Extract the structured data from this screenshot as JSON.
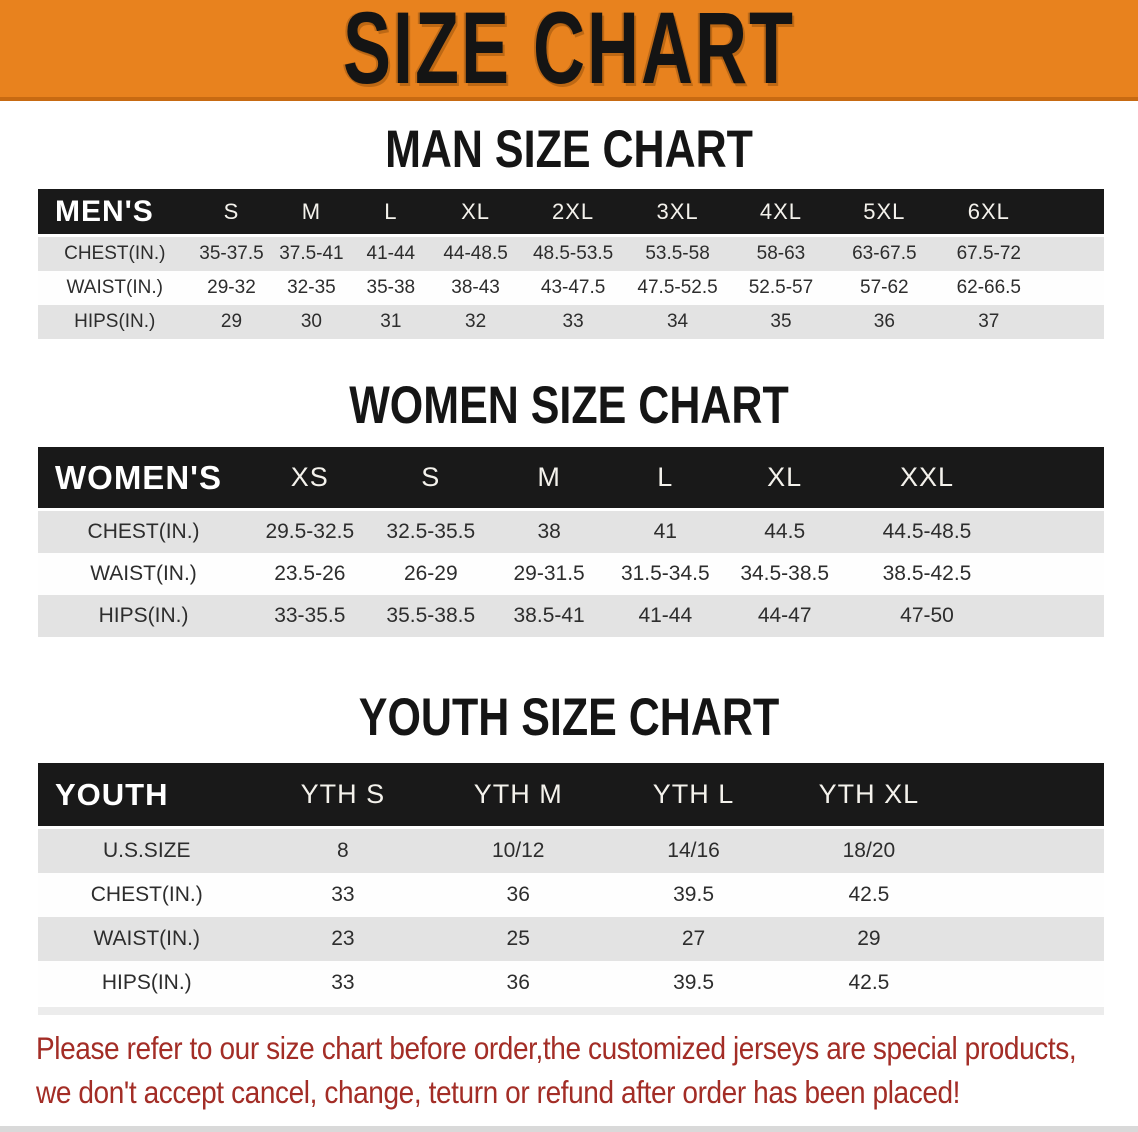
{
  "banner": {
    "title": "SIZE CHART"
  },
  "sections": {
    "man": {
      "heading": "MAN SIZE CHART",
      "table": {
        "header": [
          "MEN'S",
          "S",
          "M",
          "L",
          "XL",
          "2XL",
          "3XL",
          "4XL",
          "5XL",
          "6XL"
        ],
        "rows": [
          {
            "label": "CHEST(IN.)",
            "values": [
              "35-37.5",
              "37.5-41",
              "41-44",
              "44-48.5",
              "48.5-53.5",
              "53.5-58",
              "58-63",
              "63-67.5",
              "67.5-72"
            ]
          },
          {
            "label": "WAIST(IN.)",
            "values": [
              "29-32",
              "32-35",
              "35-38",
              "38-43",
              "43-47.5",
              "47.5-52.5",
              "52.5-57",
              "57-62",
              "62-66.5"
            ]
          },
          {
            "label": "HIPS(IN.)",
            "values": [
              "29",
              "30",
              "31",
              "32",
              "33",
              "34",
              "35",
              "36",
              "37"
            ]
          }
        ]
      }
    },
    "women": {
      "heading": "WOMEN SIZE CHART",
      "table": {
        "header": [
          "WOMEN'S",
          "XS",
          "S",
          "M",
          "L",
          "XL",
          "XXL"
        ],
        "rows": [
          {
            "label": "CHEST(IN.)",
            "values": [
              "29.5-32.5",
              "32.5-35.5",
              "38",
              "41",
              "44.5",
              "44.5-48.5"
            ]
          },
          {
            "label": "WAIST(IN.)",
            "values": [
              "23.5-26",
              "26-29",
              "29-31.5",
              "31.5-34.5",
              "34.5-38.5",
              "38.5-42.5"
            ]
          },
          {
            "label": "HIPS(IN.)",
            "values": [
              "33-35.5",
              "35.5-38.5",
              "38.5-41",
              "41-44",
              "44-47",
              "47-50"
            ]
          }
        ]
      }
    },
    "youth": {
      "heading": "YOUTH SIZE CHART",
      "table": {
        "header": [
          "YOUTH",
          "YTH S",
          "YTH M",
          "YTH L",
          "YTH XL"
        ],
        "rows": [
          {
            "label": "U.S.SIZE",
            "values": [
              "8",
              "10/12",
              "14/16",
              "18/20"
            ]
          },
          {
            "label": "CHEST(IN.)",
            "values": [
              "33",
              "36",
              "39.5",
              "42.5"
            ]
          },
          {
            "label": "WAIST(IN.)",
            "values": [
              "23",
              "25",
              "27",
              "29"
            ]
          },
          {
            "label": "HIPS(IN.)",
            "values": [
              "33",
              "36",
              "39.5",
              "42.5"
            ]
          }
        ]
      }
    }
  },
  "disclaimer": {
    "line1": "Please refer to our size chart before order,the customized jerseys are special products,",
    "line2": "we don't accept cancel, change, teturn or refund after order has been placed!"
  },
  "colors": {
    "banner_orange": "#E8821E",
    "banner_edge": "#C76A12",
    "bar_black": "#191919",
    "stripe_gray": "#E3E3E3",
    "text_dark": "#2D2D2D",
    "disclaimer_red": "#A32D26"
  }
}
